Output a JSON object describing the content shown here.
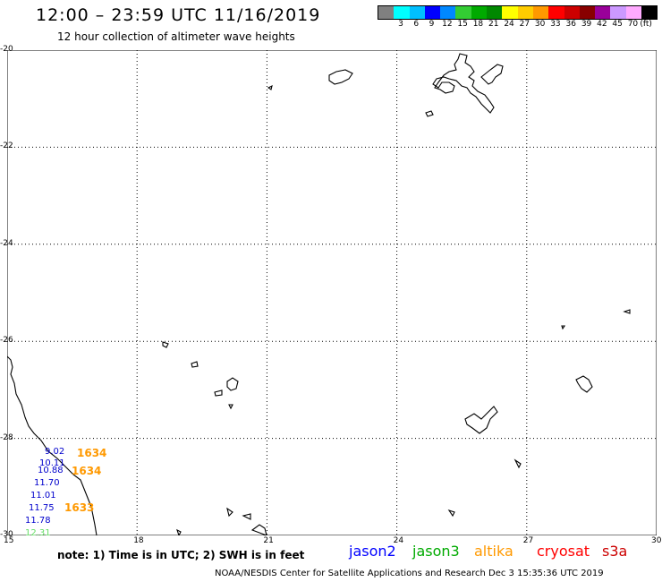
{
  "header": {
    "title": "12:00 – 23:59 UTC 11/16/2019",
    "subtitle": "12 hour collection of altimeter wave heights"
  },
  "legend": {
    "colors": [
      "#808080",
      "#00ffff",
      "#00bfff",
      "#0000ff",
      "#0088ff",
      "#33cc33",
      "#00aa00",
      "#008800",
      "#ffff00",
      "#ffcc00",
      "#ff9900",
      "#ff0000",
      "#cc0000",
      "#880000",
      "#990099",
      "#cc99ff",
      "#ffaaff",
      "#000000"
    ],
    "labels": [
      "3",
      "6",
      "9",
      "12",
      "15",
      "18",
      "21",
      "24",
      "27",
      "30",
      "33",
      "36",
      "39",
      "42",
      "45",
      "70"
    ],
    "unit": "(ft)"
  },
  "axes": {
    "y_labels": [
      "-20",
      "-22",
      "-24",
      "-26",
      "-28",
      "-30"
    ],
    "x_labels": [
      "15",
      "18",
      "21",
      "24",
      "27",
      "30"
    ]
  },
  "observations": {
    "wave_heights": [
      {
        "value": "9.02",
        "color": "#0000cc"
      },
      {
        "value": "10.11",
        "color": "#0000cc"
      },
      {
        "value": "10.88",
        "color": "#0000cc"
      },
      {
        "value": "11.70",
        "color": "#0000cc"
      },
      {
        "value": "11.01",
        "color": "#0000cc"
      },
      {
        "value": "11.75",
        "color": "#0000cc"
      },
      {
        "value": "11.78",
        "color": "#0000cc"
      },
      {
        "value": "12.31",
        "color": "#66dd66"
      }
    ],
    "times": [
      {
        "value": "1634",
        "color": "#ff9900"
      },
      {
        "value": "1634",
        "color": "#ff9900"
      },
      {
        "value": "1633",
        "color": "#ff9900"
      }
    ]
  },
  "footer": {
    "note": "note: 1) Time is in UTC; 2) SWH is in feet",
    "satellites": [
      {
        "name": "jason2",
        "color": "#0000ff"
      },
      {
        "name": "jason3",
        "color": "#00aa00"
      },
      {
        "name": "altika",
        "color": "#ff9900"
      },
      {
        "name": "cryosat",
        "color": "#ff0000"
      },
      {
        "name": "s3a",
        "color": "#cc0000"
      }
    ],
    "credit": "NOAA/NESDIS Center for Satellite Applications and Research    Dec  3 15:35:36 UTC 2019"
  }
}
